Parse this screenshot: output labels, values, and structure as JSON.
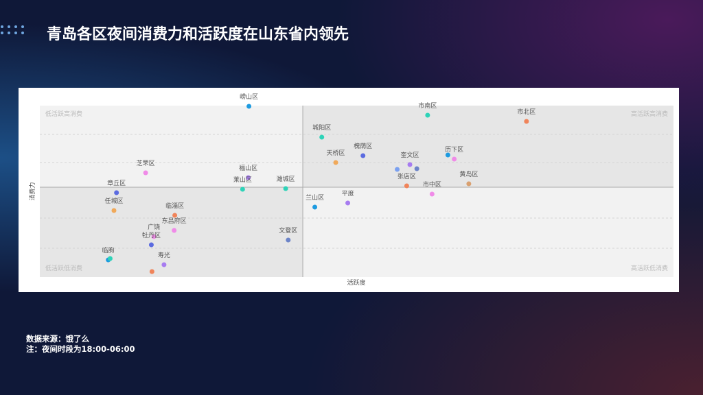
{
  "header": {
    "title": "青岛各区夜间消费力和活跃度在山东省内领先"
  },
  "chart_data": {
    "type": "scatter",
    "x_label": "活跃度",
    "y_label": "消费力",
    "quadrant_labels": {
      "top_left": "低活跃高消费",
      "top_right": "高活跃高消费",
      "bottom_left": "低活跃低消费",
      "bottom_right": "高活跃低消费"
    },
    "xlim": [
      0,
      100
    ],
    "ylim": [
      0,
      100
    ],
    "quadrant_split": {
      "x": 41.5,
      "y": 52.4
    },
    "names": [
      "崂山区",
      "市南区",
      "市北区",
      "城阳区",
      "槐荫区",
      "天桥区",
      null,
      "历下区",
      "奎文区",
      null,
      null,
      "芝罘区",
      "福山区",
      "莱山区",
      "潍城区",
      "张店区",
      "黄岛区",
      "市中区",
      "章丘区",
      "兰山区",
      "平度",
      "任城区",
      "临淄区",
      "东昌府区",
      "广饶",
      "牡丹区",
      "文登区",
      "临朐",
      null,
      "寿光",
      null
    ],
    "x": [
      33.0,
      61.2,
      76.8,
      44.5,
      51.0,
      46.7,
      64.4,
      65.4,
      58.4,
      59.5,
      56.4,
      16.7,
      32.9,
      32.0,
      38.8,
      57.9,
      67.7,
      61.9,
      12.1,
      43.4,
      48.6,
      11.7,
      21.3,
      21.2,
      18.0,
      17.6,
      39.2,
      10.8,
      11.1,
      19.6,
      17.7
    ],
    "y": [
      99.6,
      94.4,
      90.8,
      81.6,
      70.8,
      66.8,
      71.2,
      68.8,
      65.6,
      63.2,
      62.8,
      60.8,
      58.0,
      51.2,
      51.6,
      53.2,
      54.4,
      48.4,
      49.2,
      40.8,
      43.2,
      38.8,
      36.0,
      27.2,
      23.6,
      18.8,
      21.6,
      10.0,
      10.8,
      7.2,
      3.2
    ],
    "colors": [
      "#1e9be0",
      "#2ed3b8",
      "#f0845a",
      "#2ed3b8",
      "#5b6be0",
      "#f0a95a",
      "#1e9be0",
      "#f08be8",
      "#a77cf0",
      "#6c84c8",
      "#7aa0f0",
      "#f08be8",
      "#a77cf0",
      "#2ed3b8",
      "#2ed3b8",
      "#f0845a",
      "#d9a070",
      "#f08be8",
      "#5b6be0",
      "#1e9be0",
      "#a77cf0",
      "#f0a95a",
      "#f0845a",
      "#f08be8",
      "#f08be8",
      "#5b6be0",
      "#6c84c8",
      "#1e9be0",
      "#2ed3b8",
      "#a77cf0",
      "#f0845a"
    ]
  },
  "footer": {
    "source": "数据来源：饿了么",
    "note": "注：夜间时段为18:00-06:00"
  }
}
